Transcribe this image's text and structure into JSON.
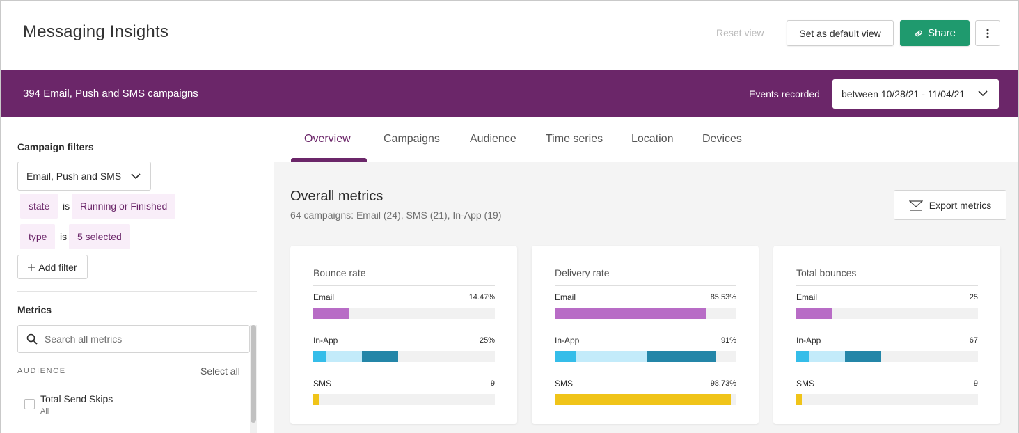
{
  "header": {
    "title": "Messaging Insights",
    "reset_view": "Reset view",
    "set_default": "Set as default view",
    "share": "Share",
    "share_icon": "link-icon",
    "more_icon": "kebab-icon",
    "accent_color": "#1f9a6e"
  },
  "band": {
    "title": "394 Email, Push and SMS campaigns",
    "events_label": "Events recorded",
    "date_range": "between 10/28/21 - 11/04/21",
    "color": "#6b2669"
  },
  "sidebar": {
    "filters_heading": "Campaign filters",
    "channel_select": "Email, Push and SMS",
    "filters": [
      {
        "field": "state",
        "op": "is",
        "value": "Running or Finished"
      },
      {
        "field": "type",
        "op": "is",
        "value": "5 selected"
      }
    ],
    "add_filter": "Add filter",
    "metrics_heading": "Metrics",
    "search_placeholder": "Search all metrics",
    "section_label": "AUDIENCE",
    "select_all": "Select all",
    "items": [
      {
        "label": "Total Send Skips",
        "sub": "All",
        "checked": false
      }
    ]
  },
  "tabs": [
    {
      "label": "Overview",
      "active": true
    },
    {
      "label": "Campaigns",
      "active": false
    },
    {
      "label": "Audience",
      "active": false
    },
    {
      "label": "Time series",
      "active": false
    },
    {
      "label": "Location",
      "active": false
    },
    {
      "label": "Devices",
      "active": false
    }
  ],
  "main": {
    "title": "Overall metrics",
    "subtitle": "64 campaigns: Email (24), SMS (21), In-App (19)",
    "export": "Export metrics"
  },
  "colors": {
    "email": "#b86cc6",
    "inapp_a": "#35bde9",
    "inapp_b": "#c3ebfa",
    "inapp_c": "#2486a8",
    "sms": "#f0c419"
  },
  "cards": [
    {
      "title": "Bounce rate",
      "rows": [
        {
          "label": "Email",
          "value": "14.47%",
          "fills": [
            0.2
          ]
        },
        {
          "label": "In-App",
          "value": "25%",
          "fills": [
            0.07,
            0.2,
            0.2
          ]
        },
        {
          "label": "SMS",
          "value": "9",
          "fills": [
            0.03
          ]
        }
      ]
    },
    {
      "title": "Delivery rate",
      "rows": [
        {
          "label": "Email",
          "value": "85.53%",
          "fills": [
            0.83
          ]
        },
        {
          "label": "In-App",
          "value": "91%",
          "fills": [
            0.12,
            0.39,
            0.38
          ]
        },
        {
          "label": "SMS",
          "value": "98.73%",
          "fills": [
            0.97
          ]
        }
      ]
    },
    {
      "title": "Total bounces",
      "rows": [
        {
          "label": "Email",
          "value": "25",
          "fills": [
            0.2
          ]
        },
        {
          "label": "In-App",
          "value": "67",
          "fills": [
            0.07,
            0.2,
            0.2
          ]
        },
        {
          "label": "SMS",
          "value": "9",
          "fills": [
            0.03
          ]
        }
      ]
    }
  ]
}
